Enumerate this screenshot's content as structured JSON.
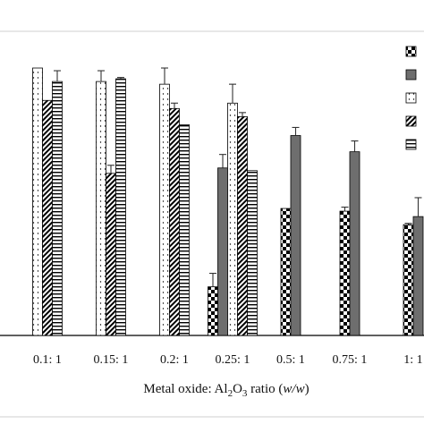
{
  "chart_data": {
    "type": "bar",
    "xlabel_parts": {
      "before_sub1": "Metal oxide: Al",
      "sub1": "2",
      "mid": "O",
      "sub2": "3",
      "after": " ratio (",
      "italic": "w/w",
      "end": ")"
    },
    "categories": [
      "0.1: 1",
      "0.15: 1",
      "0.2: 1",
      "0.25: 1",
      "0.5: 1",
      "0.75: 1",
      "1: 1"
    ],
    "ylim": [
      0,
      100
    ],
    "grid": false,
    "legend_position": "right (partially cropped)",
    "series": [
      {
        "pattern": "checker",
        "values": [
          null,
          null,
          null,
          18,
          47,
          46,
          41
        ],
        "errors": [
          null,
          null,
          null,
          5,
          0,
          1.5,
          0.5
        ]
      },
      {
        "pattern": "solid-gray",
        "color": "#6e6e6e",
        "values": [
          null,
          null,
          null,
          62,
          74,
          68,
          44
        ],
        "errors": [
          null,
          null,
          null,
          5,
          3,
          4,
          7
        ]
      },
      {
        "pattern": "dots",
        "values": [
          99,
          94,
          93,
          86,
          null,
          null,
          null
        ],
        "errors": [
          0,
          4,
          6,
          7,
          null,
          null,
          null
        ]
      },
      {
        "pattern": "diagonal",
        "values": [
          87,
          60,
          84,
          81,
          null,
          null,
          null
        ],
        "errors": [
          0,
          3,
          2,
          1.5,
          null,
          null,
          null
        ]
      },
      {
        "pattern": "horizontal-lines",
        "values": [
          94,
          95,
          78,
          61,
          null,
          null,
          null
        ],
        "errors": [
          4,
          0.5,
          0,
          0,
          null,
          null,
          null
        ]
      }
    ]
  }
}
